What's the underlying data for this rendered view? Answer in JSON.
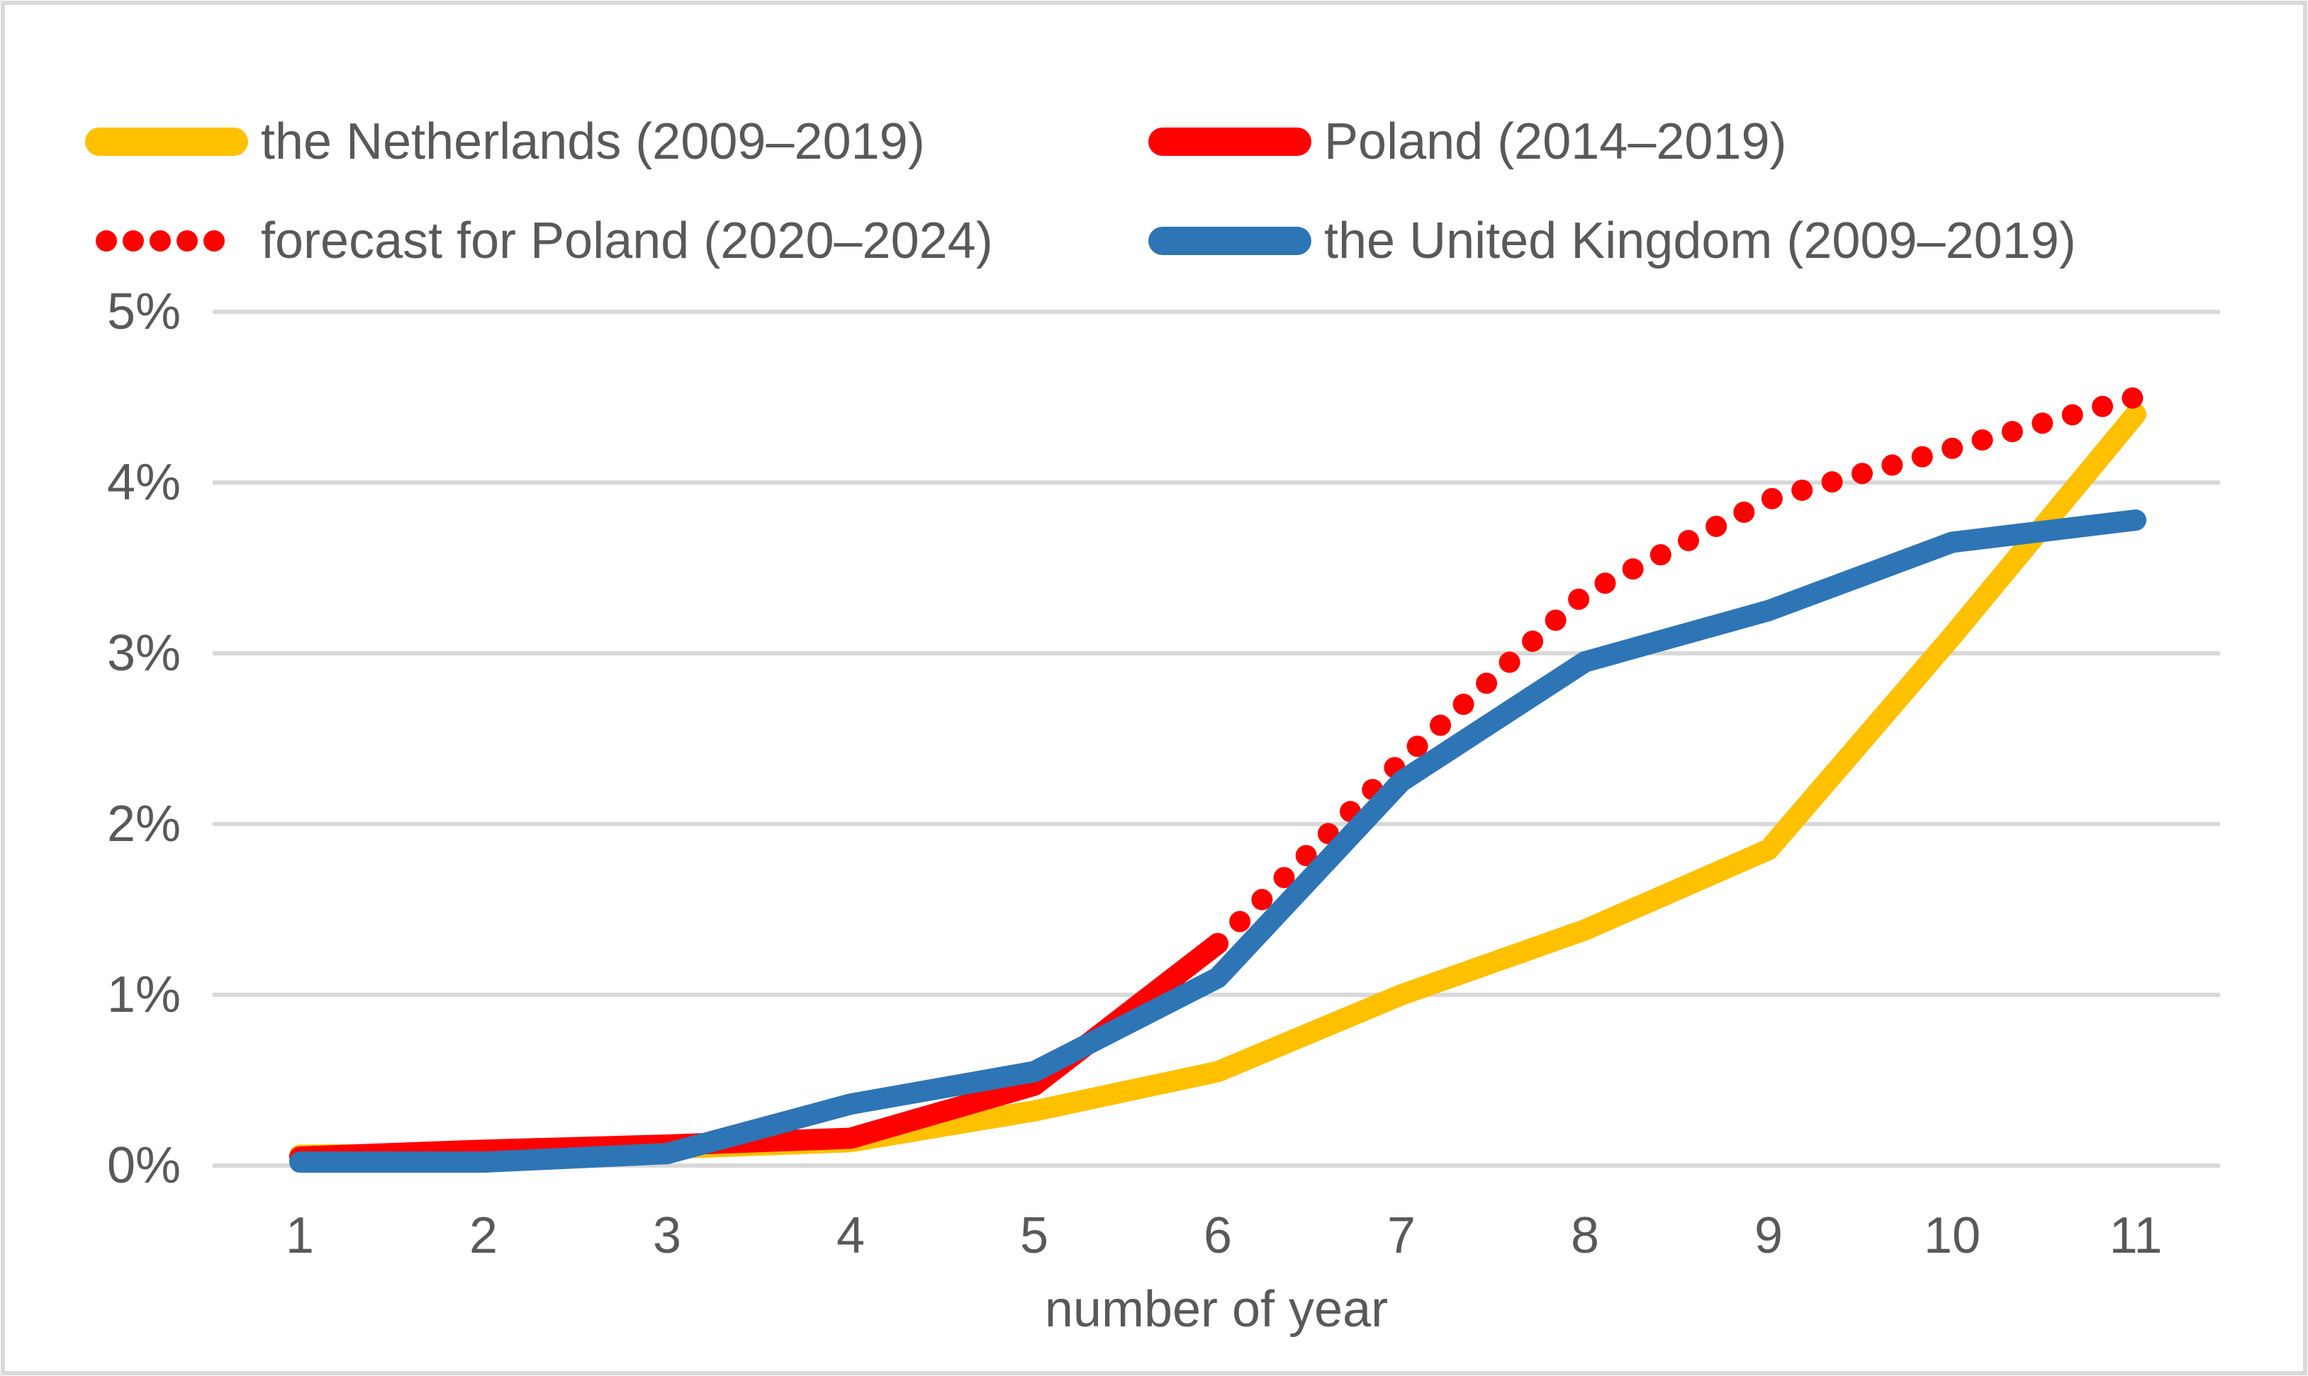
{
  "chart_data": {
    "type": "line",
    "title": "",
    "xlabel": "number of year",
    "ylabel": "",
    "x_ticks": [
      1,
      2,
      3,
      4,
      5,
      6,
      7,
      8,
      9,
      10,
      11
    ],
    "x_tick_labels": [
      "1",
      "2",
      "3",
      "4",
      "5",
      "6",
      "7",
      "8",
      "9",
      "10",
      "11"
    ],
    "y_ticks": [
      0,
      1,
      2,
      3,
      4,
      5
    ],
    "y_tick_labels_top_to_bottom": [
      "5%",
      "4%",
      "3%",
      "2%",
      "1%",
      "0%"
    ],
    "ylim": [
      0,
      5
    ],
    "xlim": [
      1,
      11
    ],
    "grid": "horizontal",
    "legend_position": "top-two-columns",
    "colors": {
      "netherlands": "#FFC000",
      "poland": "#FF0000",
      "poland_forecast": "#FF0000",
      "united_kingdom": "#2E75B6",
      "gridline": "#D9D9D9",
      "text": "#595959",
      "frame_border": "#D9D9D9"
    },
    "series": [
      {
        "id": "netherlands",
        "name": "the Netherlands (2009–2019)",
        "color": "#FFC000",
        "style": "solid",
        "x": [
          1,
          2,
          3,
          4,
          5,
          6,
          7,
          8,
          9,
          10,
          11
        ],
        "values": [
          0.06,
          0.07,
          0.1,
          0.14,
          0.32,
          0.55,
          1.0,
          1.38,
          1.85,
          3.1,
          4.4
        ]
      },
      {
        "id": "poland",
        "name": "Poland (2014–2019)",
        "color": "#FF0000",
        "style": "solid",
        "x": [
          1,
          2,
          3,
          4,
          5,
          6
        ],
        "values": [
          0.05,
          0.09,
          0.12,
          0.16,
          0.47,
          1.3
        ]
      },
      {
        "id": "poland-forecast",
        "name": "forecast for Poland (2020–2024)",
        "color": "#FF0000",
        "style": "dotted",
        "x": [
          6,
          7,
          8,
          9,
          10,
          11
        ],
        "values": [
          1.3,
          2.37,
          3.35,
          3.9,
          4.2,
          4.5
        ]
      },
      {
        "id": "united-kingdom",
        "name": "the United Kingdom (2009–2019)",
        "color": "#2E75B6",
        "style": "solid",
        "x": [
          1,
          2,
          3,
          4,
          5,
          6,
          7,
          8,
          9,
          10,
          11
        ],
        "values": [
          0.02,
          0.02,
          0.07,
          0.36,
          0.55,
          1.1,
          2.25,
          2.95,
          3.25,
          3.65,
          3.78
        ]
      }
    ]
  }
}
